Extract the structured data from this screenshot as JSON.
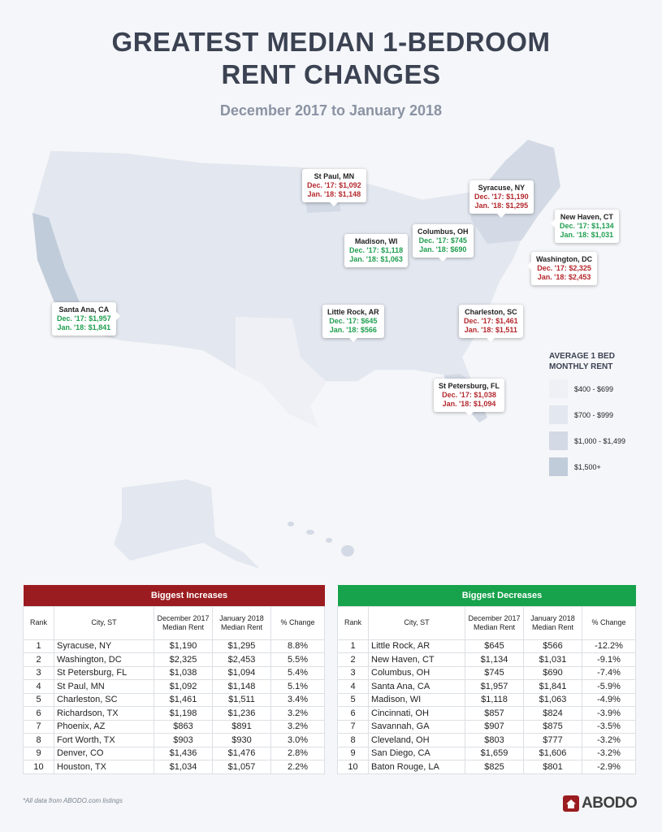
{
  "header": {
    "title_line1": "GREATEST MEDIAN 1-BEDROOM",
    "title_line2": "RENT CHANGES",
    "subtitle": "December 2017 to January 2018"
  },
  "callouts": [
    {
      "city": "St Paul, MN",
      "dec": "Dec. '17: $1,092",
      "jan": "Jan. '18: $1,148",
      "direction": "increase"
    },
    {
      "city": "Syracuse, NY",
      "dec": "Dec. '17: $1,190",
      "jan": "Jan. '18: $1,295",
      "direction": "increase"
    },
    {
      "city": "New Haven, CT",
      "dec": "Dec. '17: $1,134",
      "jan": "Jan. '18: $1,031",
      "direction": "decrease"
    },
    {
      "city": "Columbus, OH",
      "dec": "Dec. '17: $745",
      "jan": "Jan. '18: $690",
      "direction": "decrease"
    },
    {
      "city": "Madison, WI",
      "dec": "Dec. '17: $1,118",
      "jan": "Jan. '18: $1,063",
      "direction": "decrease"
    },
    {
      "city": "Washington, DC",
      "dec": "Dec. '17: $2,325",
      "jan": "Jan. '18: $2,453",
      "direction": "increase"
    },
    {
      "city": "Santa Ana, CA",
      "dec": "Dec. '17: $1,957",
      "jan": "Jan. '18: $1,841",
      "direction": "decrease"
    },
    {
      "city": "Little Rock, AR",
      "dec": "Dec. '17: $645",
      "jan": "Jan. '18: $566",
      "direction": "decrease"
    },
    {
      "city": "Charleston, SC",
      "dec": "Dec. '17: $1,461",
      "jan": "Jan. '18: $1,511",
      "direction": "increase"
    },
    {
      "city": "St Petersburg, FL",
      "dec": "Dec. '17: $1,038",
      "jan": "Jan. '18: $1,094",
      "direction": "increase"
    }
  ],
  "colors": {
    "increase": "#b3282d",
    "decrease": "#1f9e4f",
    "increase_header": "#9b1c20",
    "decrease_header": "#17a24c",
    "tier1": "#eef0f5",
    "tier2": "#e3e7ef",
    "tier3": "#d3dae5",
    "tier4": "#c1ccda"
  },
  "legend": {
    "title": "AVERAGE 1 BED MONTHLY RENT",
    "items": [
      "$400 - $699",
      "$700 - $999",
      "$1,000 - $1,499",
      "$1,500+"
    ]
  },
  "tables": {
    "columns": [
      "Rank",
      "City, ST",
      "December 2017 Median Rent",
      "January 2018 Median Rent",
      "% Change"
    ],
    "increases": {
      "title": "Biggest Increases",
      "rows": [
        [
          "1",
          "Syracuse, NY",
          "$1,190",
          "$1,295",
          "8.8%"
        ],
        [
          "2",
          "Washington, DC",
          "$2,325",
          "$2,453",
          "5.5%"
        ],
        [
          "3",
          "St Petersburg, FL",
          "$1,038",
          "$1,094",
          "5.4%"
        ],
        [
          "4",
          "St Paul, MN",
          "$1,092",
          "$1,148",
          "5.1%"
        ],
        [
          "5",
          "Charleston, SC",
          "$1,461",
          "$1,511",
          "3.4%"
        ],
        [
          "6",
          "Richardson, TX",
          "$1,198",
          "$1,236",
          "3.2%"
        ],
        [
          "7",
          "Phoenix, AZ",
          "$863",
          "$891",
          "3.2%"
        ],
        [
          "8",
          "Fort Worth, TX",
          "$903",
          "$930",
          "3.0%"
        ],
        [
          "9",
          "Denver, CO",
          "$1,436",
          "$1,476",
          "2.8%"
        ],
        [
          "10",
          "Houston, TX",
          "$1,034",
          "$1,057",
          "2.2%"
        ]
      ]
    },
    "decreases": {
      "title": "Biggest Decreases",
      "rows": [
        [
          "1",
          "Little Rock, AR",
          "$645",
          "$566",
          "-12.2%"
        ],
        [
          "2",
          "New Haven, CT",
          "$1,134",
          "$1,031",
          "-9.1%"
        ],
        [
          "3",
          "Columbus, OH",
          "$745",
          "$690",
          "-7.4%"
        ],
        [
          "4",
          "Santa Ana, CA",
          "$1,957",
          "$1,841",
          "-5.9%"
        ],
        [
          "5",
          "Madison, WI",
          "$1,118",
          "$1,063",
          "-4.9%"
        ],
        [
          "6",
          "Cincinnati, OH",
          "$857",
          "$824",
          "-3.9%"
        ],
        [
          "7",
          "Savannah, GA",
          "$907",
          "$875",
          "-3.5%"
        ],
        [
          "8",
          "Cleveland, OH",
          "$803",
          "$777",
          "-3.2%"
        ],
        [
          "9",
          "San Diego, CA",
          "$1,659",
          "$1,606",
          "-3.2%"
        ],
        [
          "10",
          "Baton Rouge, LA",
          "$825",
          "$801",
          "-2.9%"
        ]
      ]
    }
  },
  "footer": {
    "note": "*All data from ABODO.com listings",
    "logo": "ABODO",
    "logo_icon": "house-icon"
  }
}
